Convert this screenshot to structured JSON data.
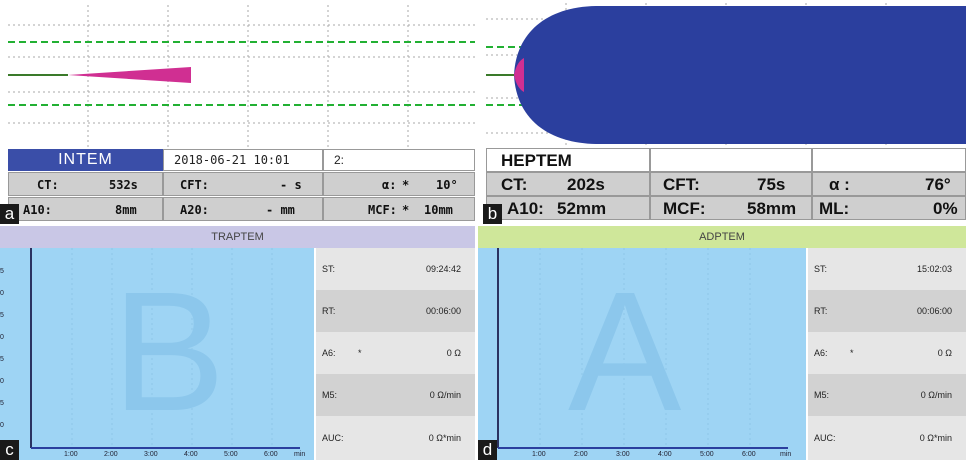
{
  "panel_a": {
    "letter": "a",
    "test": "INTEM",
    "datetime": "2018-06-21 10:01",
    "channel": "2:",
    "ct_label": "CT:",
    "ct_value": "532s",
    "cft_label": "CFT:",
    "cft_value": "- s",
    "alpha_label": "α:",
    "alpha_mark": "*",
    "alpha_value": "10°",
    "a10_label": "A10:",
    "a10_value": "8mm",
    "a20_label": "A20:",
    "a20_value": "- mm",
    "mcf_label": "MCF:",
    "mcf_mark": "*",
    "mcf_value": "10mm"
  },
  "panel_b": {
    "letter": "b",
    "test": "HEPTEM",
    "ct_label": "CT:",
    "ct_value": "202s",
    "cft_label": "CFT:",
    "cft_value": "75s",
    "alpha_label": "α :",
    "alpha_value": "76°",
    "a10_label": "A10:",
    "a10_value": "52mm",
    "mcf_label": "MCF:",
    "mcf_value": "58mm",
    "ml_label": "ML:",
    "ml_value": "0%"
  },
  "panel_c": {
    "letter": "c",
    "header": "TRAPTEM",
    "watermark": "B",
    "st_label": "ST:",
    "st_value": "09:24:42",
    "rt_label": "RT:",
    "rt_value": "00:06:00",
    "a6_label": "A6:",
    "a6_mark": "*",
    "a6_value": "0 Ω",
    "m5_label": "M5:",
    "m5_value": "0 Ω/min",
    "auc_label": "AUC:",
    "auc_value": "0 Ω*min",
    "ticks": [
      "1:00",
      "2:00",
      "3:00",
      "4:00",
      "5:00",
      "6:00"
    ],
    "unit": "min",
    "ylabels": [
      "5",
      "0",
      "5",
      "0",
      "5",
      "0",
      "5",
      "0"
    ]
  },
  "panel_d": {
    "letter": "d",
    "header": "ADPTEM",
    "watermark": "A",
    "st_label": "ST:",
    "st_value": "15:02:03",
    "rt_label": "RT:",
    "rt_value": "00:06:00",
    "a6_label": "A6:",
    "a6_mark": "*",
    "a6_value": "0 Ω",
    "m5_label": "M5:",
    "m5_value": "0 Ω/min",
    "auc_label": "AUC:",
    "auc_value": "0 Ω*min",
    "ticks": [
      "1:00",
      "2:00",
      "3:00",
      "4:00",
      "5:00",
      "6:00"
    ],
    "unit": "min"
  },
  "colors": {
    "intem_header": "#3a4ea8",
    "clot_pink": "#d02f92",
    "clot_blue": "#2b3f9e",
    "threshold_green": "#22b033",
    "traptem_header": "#c9c7e6",
    "adptem_header": "#cfe79a",
    "impedance_plot": "#9ed4f4"
  }
}
